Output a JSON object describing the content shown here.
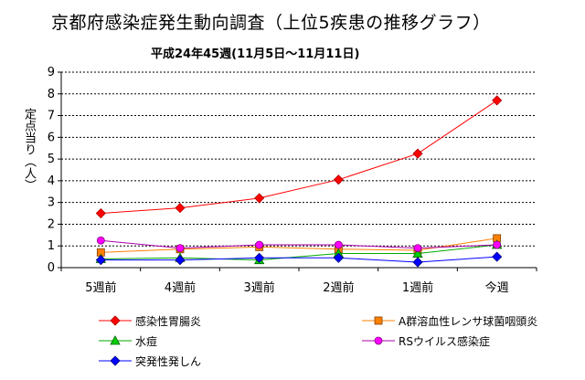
{
  "chart_data": {
    "type": "line",
    "title": "京都府感染症発生動向調査（上位5疾患の推移グラフ）",
    "subtitle": "平成24年45週(11月5日～11月11日)",
    "ylabel": "定点当り（人）",
    "xlabel": "",
    "categories": [
      "5週前",
      "4週前",
      "3週前",
      "2週前",
      "1週前",
      "今週"
    ],
    "ylim": [
      0,
      9
    ],
    "yticks": [
      0,
      1,
      2,
      3,
      4,
      5,
      6,
      7,
      8,
      9
    ],
    "grid": "horizontal-dashed",
    "legend_position": "bottom",
    "series": [
      {
        "name": "感染性胃腸炎",
        "color": "#ff0000",
        "marker": "diamond",
        "marker_color": "#ff0000",
        "values": [
          2.5,
          2.75,
          3.2,
          4.05,
          5.25,
          7.7
        ]
      },
      {
        "name": "A群溶血性レンサ球菌咽頭炎",
        "color": "#ff8000",
        "marker": "square",
        "marker_color": "#ff8000",
        "values": [
          0.7,
          0.85,
          0.95,
          0.85,
          0.8,
          1.35
        ]
      },
      {
        "name": "水痘",
        "color": "#00aa00",
        "marker": "triangle",
        "marker_color": "#00cc00",
        "values": [
          0.4,
          0.45,
          0.35,
          0.65,
          0.65,
          1.05
        ]
      },
      {
        "name": "RSウイルス感染症",
        "color": "#aa00aa",
        "marker": "circle",
        "marker_color": "#ff00ff",
        "values": [
          1.25,
          0.9,
          1.05,
          1.05,
          0.9,
          1.05
        ]
      },
      {
        "name": "突発性発しん",
        "color": "#0000ff",
        "marker": "diamond",
        "marker_color": "#0000ff",
        "values": [
          0.35,
          0.35,
          0.45,
          0.45,
          0.25,
          0.5
        ]
      }
    ]
  }
}
